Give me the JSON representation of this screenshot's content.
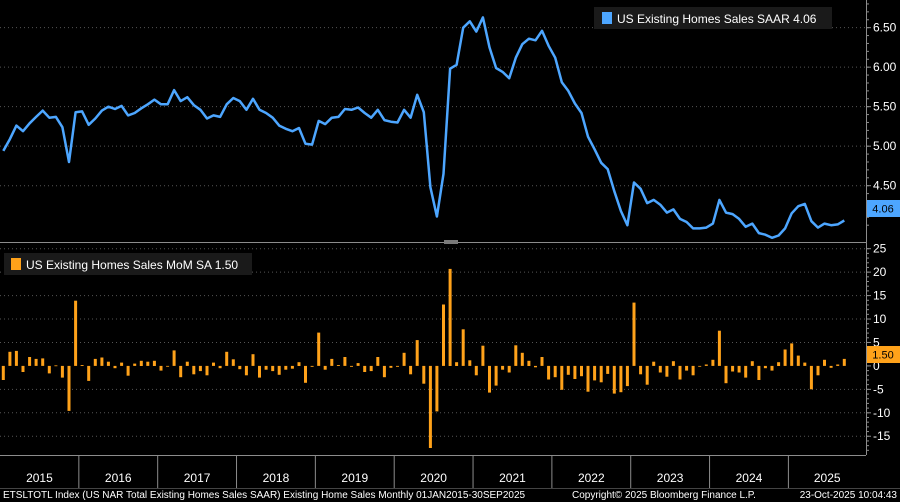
{
  "colors": {
    "background": "#000000",
    "line": "#4da6ff",
    "bar": "#ffa21a",
    "grid": "#555555",
    "axis": "#8c8c8c",
    "badge_line_bg": "#4da6ff",
    "badge_bar_bg": "#ffa21a"
  },
  "footer": {
    "left": "ETSLTOTL Index (US NAR Total Existing Homes Sales SAAR) Existing Home Sales Monthly 01JAN2015-30SEP2025",
    "copyright": "Copyright© 2025 Bloomberg Finance L.P.",
    "timestamp": "23-Oct-2025 10:04:43"
  },
  "chart_data": [
    {
      "type": "line",
      "legend": "US Existing Homes Sales SAAR 4.06",
      "last_value_label": "4.06",
      "ylim": [
        3.8,
        6.85
      ],
      "yticks": [
        "4.50",
        "5.00",
        "5.50",
        "6.00",
        "6.50"
      ],
      "ytick_values": [
        4.5,
        5.0,
        5.5,
        6.0,
        6.5
      ],
      "grid": true,
      "legend_position": "top-right",
      "series": [
        {
          "values": [
            4.94,
            5.09,
            5.26,
            5.19,
            5.29,
            5.37,
            5.45,
            5.36,
            5.37,
            5.24,
            4.8,
            5.43,
            5.44,
            5.27,
            5.35,
            5.45,
            5.5,
            5.47,
            5.51,
            5.39,
            5.42,
            5.48,
            5.53,
            5.59,
            5.53,
            5.53,
            5.71,
            5.57,
            5.62,
            5.52,
            5.46,
            5.35,
            5.39,
            5.37,
            5.53,
            5.61,
            5.57,
            5.46,
            5.6,
            5.46,
            5.42,
            5.36,
            5.26,
            5.22,
            5.19,
            5.23,
            5.03,
            5.02,
            5.32,
            5.28,
            5.36,
            5.37,
            5.47,
            5.46,
            5.49,
            5.42,
            5.36,
            5.46,
            5.33,
            5.31,
            5.3,
            5.46,
            5.36,
            5.65,
            5.43,
            4.48,
            4.11,
            4.65,
            5.98,
            6.03,
            6.5,
            6.58,
            6.45,
            6.63,
            6.25,
            5.99,
            5.94,
            5.86,
            6.12,
            6.29,
            6.36,
            6.34,
            6.46,
            6.27,
            6.12,
            5.81,
            5.7,
            5.54,
            5.42,
            5.12,
            4.96,
            4.79,
            4.71,
            4.43,
            4.18,
            4.0,
            4.54,
            4.46,
            4.28,
            4.32,
            4.26,
            4.16,
            4.2,
            4.08,
            4.04,
            3.96,
            3.96,
            3.97,
            4.02,
            4.32,
            4.16,
            4.14,
            4.08,
            3.98,
            4.02,
            3.9,
            3.88,
            3.84,
            3.87,
            3.96,
            4.15,
            4.24,
            4.27,
            4.05,
            3.97,
            4.02,
            4.0,
            4.01,
            4.06
          ]
        }
      ]
    },
    {
      "type": "bar",
      "legend": "US Existing Homes Sales MoM SA 1.50",
      "last_value_label": "1.50",
      "ylim": [
        -19,
        26
      ],
      "yticks": [
        "25",
        "20",
        "15",
        "10",
        "5",
        "0",
        "-5",
        "-10",
        "-15"
      ],
      "ytick_values": [
        25,
        20,
        15,
        10,
        5,
        0,
        -5,
        -10,
        -15
      ],
      "grid": true,
      "legend_position": "top-left",
      "series": [
        {
          "values": [
            -3.0,
            3.0,
            3.2,
            -1.3,
            1.9,
            1.5,
            1.6,
            -1.6,
            0.1,
            -2.5,
            -9.6,
            13.9,
            0.2,
            -3.2,
            1.5,
            1.8,
            0.9,
            -0.5,
            0.7,
            -2.1,
            0.5,
            1.1,
            0.9,
            1.1,
            -1.0,
            0.0,
            3.3,
            -2.4,
            0.9,
            -1.8,
            -1.1,
            -2.0,
            0.7,
            -0.5,
            3.0,
            1.4,
            -0.7,
            -2.0,
            2.5,
            -2.5,
            -0.8,
            -1.1,
            -1.9,
            -0.8,
            -0.6,
            0.8,
            -3.6,
            -0.2,
            7.1,
            -0.8,
            1.5,
            0.2,
            1.9,
            -0.2,
            0.6,
            -1.3,
            -1.1,
            1.9,
            -2.4,
            -0.4,
            -0.2,
            2.8,
            -1.8,
            5.5,
            -3.8,
            -17.5,
            -9.7,
            13.1,
            20.7,
            0.8,
            7.8,
            1.2,
            -2.0,
            4.3,
            -5.7,
            -4.2,
            -0.8,
            -1.4,
            4.4,
            2.8,
            1.1,
            -0.3,
            1.9,
            -2.9,
            -2.4,
            -5.1,
            -1.9,
            -2.8,
            -2.2,
            -5.5,
            -3.1,
            -3.5,
            -1.7,
            -5.9,
            -5.6,
            -4.3,
            13.5,
            -1.8,
            -4.0,
            0.9,
            -1.4,
            -2.3,
            1.0,
            -2.9,
            -1.0,
            -2.0,
            0.0,
            0.3,
            1.3,
            7.5,
            -3.7,
            -1.2,
            -1.4,
            -2.5,
            1.0,
            -3.0,
            -0.5,
            -1.0,
            0.8,
            3.5,
            4.8,
            2.2,
            0.7,
            -5.0,
            -2.0,
            1.3,
            -0.4,
            0.3,
            1.5
          ]
        }
      ]
    },
    {
      "type": "axis",
      "years": [
        "2015",
        "2016",
        "2017",
        "2018",
        "2019",
        "2020",
        "2021",
        "2022",
        "2023",
        "2024",
        "2025"
      ]
    }
  ]
}
